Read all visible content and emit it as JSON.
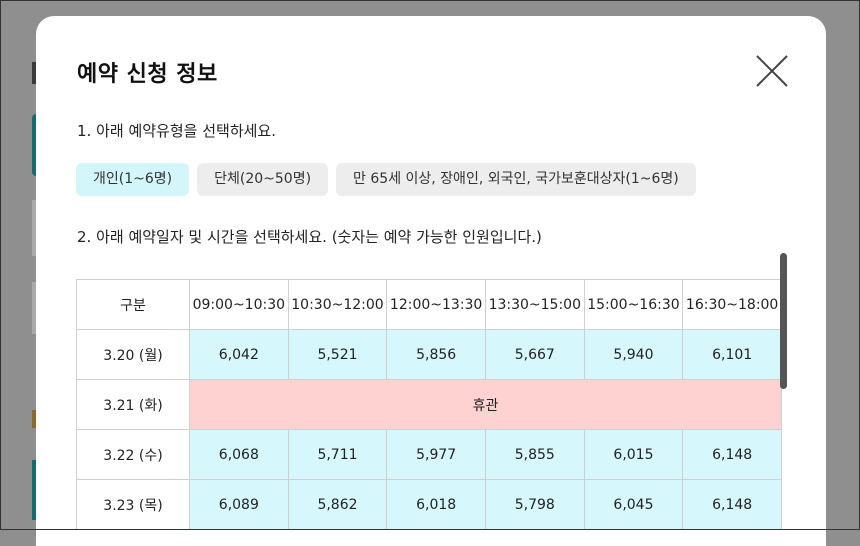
{
  "modal": {
    "title": "예약 신청 정보",
    "close_icon": "close-icon"
  },
  "step1": {
    "text": "1. 아래 예약유형을 선택하세요."
  },
  "types": [
    {
      "label": "개인(1~6명)",
      "selected": true
    },
    {
      "label": "단체(20~50명)",
      "selected": false
    },
    {
      "label": "만 65세 이상, 장애인, 외국인, 국가보훈대상자(1~6명)",
      "selected": false
    }
  ],
  "step2": {
    "text": "2. 아래 예약일자 및 시간을 선택하세요. (숫자는 예약 가능한 인원입니다.)"
  },
  "table": {
    "header": [
      "구분",
      "09:00~10:30",
      "10:30~12:00",
      "12:00~13:30",
      "13:30~15:00",
      "15:00~16:30",
      "16:30~18:00"
    ],
    "rows": [
      {
        "date": "3.20 (월)",
        "values": [
          "6,042",
          "5,521",
          "5,856",
          "5,667",
          "5,940",
          "6,101"
        ]
      },
      {
        "date": "3.21 (화)",
        "closed": "휴관"
      },
      {
        "date": "3.22 (수)",
        "values": [
          "6,068",
          "5,711",
          "5,977",
          "5,855",
          "6,015",
          "6,148"
        ]
      },
      {
        "date": "3.23 (목)",
        "values": [
          "6,089",
          "5,862",
          "6,018",
          "5,798",
          "6,045",
          "6,148"
        ]
      }
    ]
  },
  "colors": {
    "available_cell": "#d6f7fc",
    "closed_cell": "#ffd2d2",
    "selected_type": "#d3f6fa",
    "overlay": "#8f8f8f"
  }
}
